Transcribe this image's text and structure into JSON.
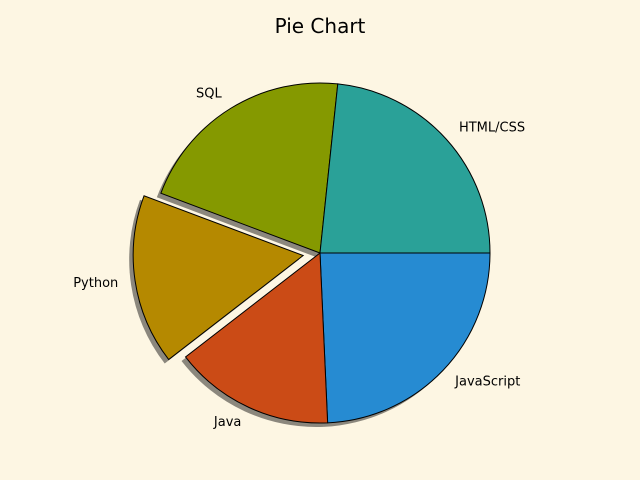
{
  "chart_data": {
    "type": "pie",
    "title": "Pie Chart",
    "labels": [
      "JavaScript",
      "Java",
      "Python",
      "SQL",
      "HTML/CSS"
    ],
    "values": [
      25.5,
      16.0,
      17.0,
      22.0,
      24.5
    ],
    "colors": [
      "#268bd2",
      "#cb4b16",
      "#b58900",
      "#859900",
      "#2aa198"
    ],
    "explode": [
      0,
      0,
      0.1,
      0,
      0
    ],
    "shadow": true,
    "start_angle_deg": 0,
    "direction": "clockwise"
  }
}
